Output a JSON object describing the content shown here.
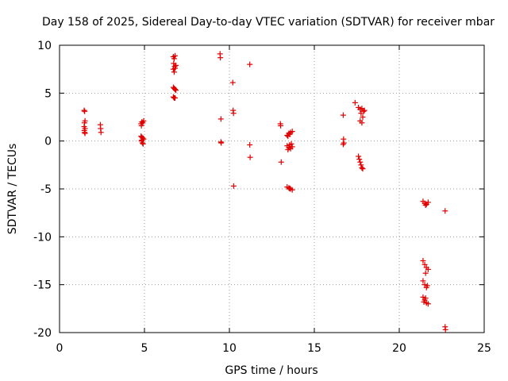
{
  "chart_data": {
    "type": "scatter",
    "title": "Day 158 of 2025, Sidereal Day-to-day VTEC variation (SDTVAR) for receiver mbar",
    "xlabel": "GPS time / hours",
    "ylabel": "SDTVAR / TECUs",
    "xlim": [
      0,
      25
    ],
    "ylim": [
      -20,
      10
    ],
    "xticks": [
      0,
      5,
      10,
      15,
      20,
      25
    ],
    "yticks": [
      -20,
      -15,
      -10,
      -5,
      0,
      5,
      10
    ],
    "xtick_labels": [
      "0",
      "5",
      "10",
      "15",
      "20",
      "25"
    ],
    "ytick_labels": [
      "-20",
      "-15",
      "-10",
      "-5",
      "0",
      "5",
      "10"
    ],
    "grid": true,
    "marker": "plus",
    "marker_color": "#e00000",
    "series": [
      {
        "name": "SDTVAR",
        "points": [
          [
            1.45,
            3.2
          ],
          [
            1.48,
            3.1
          ],
          [
            1.5,
            2.1
          ],
          [
            1.47,
            1.9
          ],
          [
            1.45,
            1.5
          ],
          [
            1.5,
            1.3
          ],
          [
            1.46,
            1.1
          ],
          [
            1.48,
            0.9
          ],
          [
            1.5,
            0.8
          ],
          [
            2.4,
            1.7
          ],
          [
            2.42,
            1.3
          ],
          [
            2.44,
            0.9
          ],
          [
            4.8,
            1.8
          ],
          [
            4.85,
            2.0
          ],
          [
            4.9,
            1.9
          ],
          [
            4.95,
            2.1
          ],
          [
            4.82,
            1.6
          ],
          [
            4.8,
            0.5
          ],
          [
            4.85,
            0.4
          ],
          [
            4.9,
            0.3
          ],
          [
            4.95,
            0.2
          ],
          [
            4.82,
            0.0
          ],
          [
            4.88,
            -0.2
          ],
          [
            4.92,
            -0.3
          ],
          [
            4.85,
            0.1
          ],
          [
            6.7,
            8.8
          ],
          [
            6.75,
            8.6
          ],
          [
            6.8,
            8.9
          ],
          [
            6.72,
            8.1
          ],
          [
            6.78,
            7.8
          ],
          [
            6.7,
            7.5
          ],
          [
            6.75,
            7.2
          ],
          [
            6.8,
            7.6
          ],
          [
            6.85,
            7.9
          ],
          [
            6.7,
            5.6
          ],
          [
            6.75,
            5.5
          ],
          [
            6.8,
            5.4
          ],
          [
            6.85,
            5.3
          ],
          [
            6.7,
            4.6
          ],
          [
            6.75,
            4.5
          ],
          [
            6.8,
            4.5
          ],
          [
            9.45,
            9.1
          ],
          [
            9.47,
            8.7
          ],
          [
            9.5,
            2.3
          ],
          [
            9.5,
            -0.1
          ],
          [
            9.52,
            -0.2
          ],
          [
            10.2,
            6.1
          ],
          [
            10.22,
            3.2
          ],
          [
            10.24,
            2.9
          ],
          [
            10.25,
            -4.7
          ],
          [
            11.2,
            8.0
          ],
          [
            11.2,
            -0.4
          ],
          [
            11.22,
            -1.7
          ],
          [
            13.0,
            1.8
          ],
          [
            13.02,
            1.6
          ],
          [
            13.05,
            -2.2
          ],
          [
            13.4,
            0.6
          ],
          [
            13.5,
            0.8
          ],
          [
            13.6,
            0.9
          ],
          [
            13.7,
            1.0
          ],
          [
            13.45,
            0.5
          ],
          [
            13.55,
            0.7
          ],
          [
            13.4,
            -0.5
          ],
          [
            13.5,
            -0.7
          ],
          [
            13.6,
            -0.8
          ],
          [
            13.7,
            -0.6
          ],
          [
            13.45,
            -0.9
          ],
          [
            13.55,
            -0.4
          ],
          [
            13.65,
            -0.3
          ],
          [
            13.4,
            -4.8
          ],
          [
            13.5,
            -4.9
          ],
          [
            13.6,
            -5.0
          ],
          [
            13.7,
            -5.1
          ],
          [
            13.55,
            -4.95
          ],
          [
            16.7,
            2.7
          ],
          [
            16.72,
            0.2
          ],
          [
            16.74,
            -0.2
          ],
          [
            16.7,
            -0.35
          ],
          [
            17.4,
            4.0
          ],
          [
            17.6,
            3.5
          ],
          [
            17.7,
            3.3
          ],
          [
            17.8,
            3.4
          ],
          [
            17.9,
            3.1
          ],
          [
            17.75,
            2.9
          ],
          [
            17.85,
            2.5
          ],
          [
            17.7,
            2.1
          ],
          [
            17.8,
            1.9
          ],
          [
            17.95,
            3.2
          ],
          [
            17.6,
            -1.6
          ],
          [
            17.65,
            -1.9
          ],
          [
            17.7,
            -2.2
          ],
          [
            17.75,
            -2.5
          ],
          [
            17.8,
            -2.8
          ],
          [
            17.85,
            -2.9
          ],
          [
            21.4,
            -6.3
          ],
          [
            21.5,
            -6.5
          ],
          [
            21.6,
            -6.6
          ],
          [
            21.7,
            -6.4
          ],
          [
            21.55,
            -6.7
          ],
          [
            21.4,
            -12.5
          ],
          [
            21.5,
            -12.9
          ],
          [
            21.6,
            -13.2
          ],
          [
            21.7,
            -13.4
          ],
          [
            21.55,
            -13.8
          ],
          [
            21.4,
            -14.6
          ],
          [
            21.5,
            -15.0
          ],
          [
            21.6,
            -15.3
          ],
          [
            21.65,
            -15.1
          ],
          [
            21.4,
            -16.3
          ],
          [
            21.5,
            -16.6
          ],
          [
            21.6,
            -16.9
          ],
          [
            21.7,
            -17.0
          ],
          [
            21.55,
            -16.4
          ],
          [
            21.45,
            -16.8
          ],
          [
            22.7,
            -7.3
          ],
          [
            22.7,
            -19.4
          ],
          [
            22.72,
            -19.7
          ]
        ]
      }
    ]
  }
}
